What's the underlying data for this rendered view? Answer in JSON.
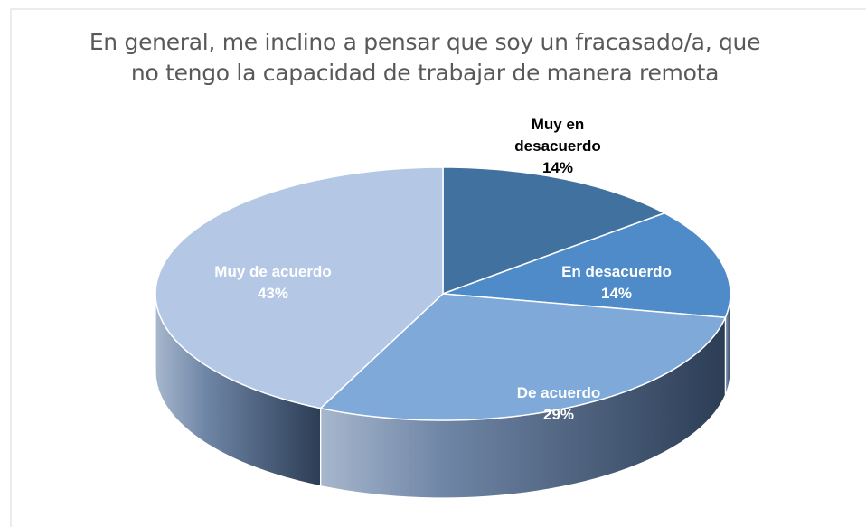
{
  "chart_data": {
    "type": "pie",
    "title": "En general, me inclino a pensar que soy un fracasado/a, que no tengo la capacidad de trabajar de manera remota",
    "categories": [
      "Muy en desacuerdo",
      "En desacuerdo",
      "De acuerdo",
      "Muy de acuerdo"
    ],
    "values": [
      14,
      14,
      29,
      43
    ],
    "value_labels": [
      "14%",
      "14%",
      "29%",
      "43%"
    ],
    "colors": [
      "#41719f",
      "#4f8bc9",
      "#7ea9d9",
      "#b4c8e6"
    ]
  }
}
